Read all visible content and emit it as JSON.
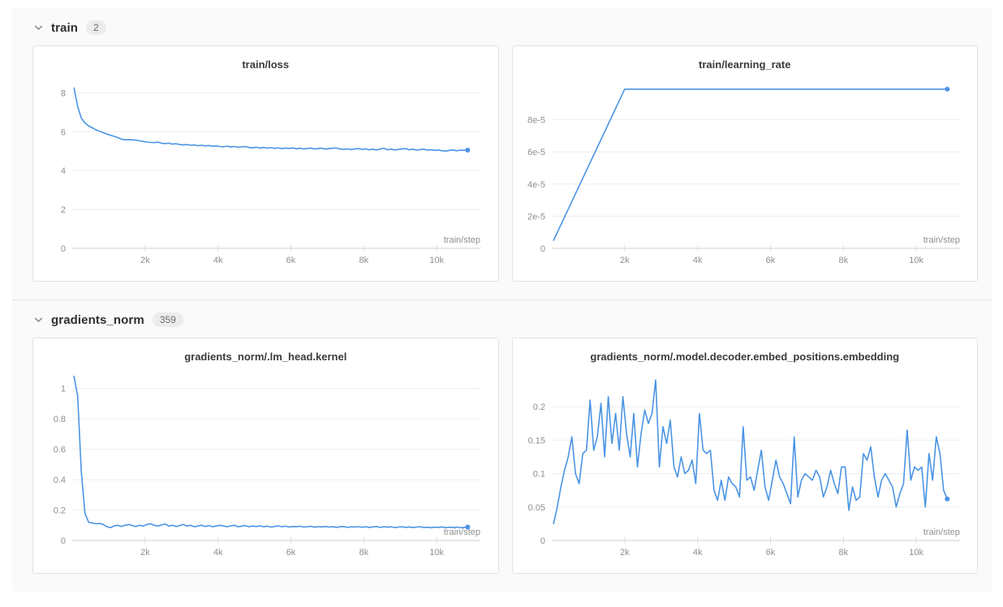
{
  "colors": {
    "accent_line": "#4a94e4",
    "content_background": "#fafafa",
    "panel_border": "#e2e2e2",
    "gridline": "#ededed",
    "axis_line": "#cfcfcf"
  },
  "sections": [
    {
      "title": "train",
      "count": "2",
      "chart_ids": [
        0,
        1
      ]
    },
    {
      "title": "gradients_norm",
      "count": "359",
      "chart_ids": [
        2,
        3
      ]
    }
  ],
  "chart_data": [
    {
      "type": "line",
      "title": "train/loss",
      "xlabel": "train/step",
      "color": "#4a94e4",
      "legend_position": "none",
      "grid": true,
      "xlim": [
        0,
        11200
      ],
      "ylim": [
        0,
        8.6
      ],
      "xtick_values": [
        2000,
        4000,
        6000,
        8000,
        10000
      ],
      "xtick_labels": [
        "2k",
        "4k",
        "6k",
        "8k",
        "10k"
      ],
      "ytick_values": [
        0,
        2,
        4,
        6,
        8
      ],
      "ytick_labels": [
        "0",
        "2",
        "4",
        "6",
        "8"
      ],
      "x0": 50,
      "dx": 100,
      "y": [
        8.25,
        7.3,
        6.7,
        6.45,
        6.3,
        6.2,
        6.1,
        6.02,
        5.95,
        5.88,
        5.82,
        5.76,
        5.7,
        5.62,
        5.58,
        5.59,
        5.58,
        5.56,
        5.53,
        5.5,
        5.47,
        5.45,
        5.44,
        5.46,
        5.41,
        5.39,
        5.41,
        5.36,
        5.38,
        5.34,
        5.32,
        5.34,
        5.3,
        5.32,
        5.28,
        5.3,
        5.27,
        5.29,
        5.25,
        5.27,
        5.24,
        5.22,
        5.26,
        5.21,
        5.24,
        5.2,
        5.22,
        5.24,
        5.19,
        5.17,
        5.2,
        5.16,
        5.19,
        5.15,
        5.18,
        5.14,
        5.17,
        5.13,
        5.16,
        5.14,
        5.17,
        5.12,
        5.15,
        5.11,
        5.14,
        5.16,
        5.11,
        5.14,
        5.15,
        5.1,
        5.13,
        5.15,
        5.16,
        5.11,
        5.09,
        5.12,
        5.08,
        5.11,
        5.13,
        5.09,
        5.12,
        5.07,
        5.1,
        5.06,
        5.11,
        5.15,
        5.07,
        5.1,
        5.06,
        5.09,
        5.11,
        5.13,
        5.07,
        5.1,
        5.05,
        5.08,
        5.1,
        5.05,
        5.07,
        5.04,
        5.06,
        5.02,
        5.0,
        5.04,
        5.06,
        5.02,
        5.05,
        5.04,
        5.05
      ]
    },
    {
      "type": "line",
      "title": "train/learning_rate",
      "xlabel": "train/step",
      "color": "#4a94e4",
      "legend_position": "none",
      "grid": true,
      "xlim": [
        0,
        11200
      ],
      "ylim": [
        0,
        0.000104
      ],
      "xtick_values": [
        2000,
        4000,
        6000,
        8000,
        10000
      ],
      "xtick_labels": [
        "2k",
        "4k",
        "6k",
        "8k",
        "10k"
      ],
      "ytick_values": [
        0,
        2e-05,
        4e-05,
        6e-05,
        8e-05
      ],
      "ytick_labels": [
        "0",
        "2e-5",
        "4e-5",
        "6e-5",
        "8e-5"
      ],
      "x": [
        50,
        2000,
        10850
      ],
      "y": [
        5e-06,
        9.9e-05,
        9.9e-05
      ]
    },
    {
      "type": "line",
      "title": "gradients_norm/.lm_head.kernel",
      "xlabel": "train/step",
      "color": "#4a94e4",
      "legend_position": "none",
      "grid": true,
      "xlim": [
        0,
        11200
      ],
      "ylim": [
        0,
        1.1
      ],
      "xtick_values": [
        2000,
        4000,
        6000,
        8000,
        10000
      ],
      "xtick_labels": [
        "2k",
        "4k",
        "6k",
        "8k",
        "10k"
      ],
      "ytick_values": [
        0,
        0.2,
        0.4,
        0.6,
        0.8,
        1
      ],
      "ytick_labels": [
        "0",
        "0.2",
        "0.4",
        "0.6",
        "0.8",
        "1"
      ],
      "x0": 50,
      "dx": 100,
      "y": [
        1.08,
        0.95,
        0.45,
        0.18,
        0.12,
        0.115,
        0.11,
        0.112,
        0.105,
        0.09,
        0.085,
        0.095,
        0.1,
        0.092,
        0.1,
        0.105,
        0.098,
        0.092,
        0.1,
        0.095,
        0.105,
        0.11,
        0.1,
        0.095,
        0.102,
        0.108,
        0.095,
        0.1,
        0.092,
        0.098,
        0.105,
        0.095,
        0.1,
        0.09,
        0.095,
        0.1,
        0.092,
        0.098,
        0.09,
        0.095,
        0.1,
        0.095,
        0.09,
        0.096,
        0.1,
        0.09,
        0.094,
        0.098,
        0.09,
        0.095,
        0.092,
        0.096,
        0.09,
        0.094,
        0.088,
        0.092,
        0.096,
        0.09,
        0.094,
        0.088,
        0.092,
        0.09,
        0.094,
        0.088,
        0.09,
        0.093,
        0.087,
        0.091,
        0.089,
        0.092,
        0.088,
        0.09,
        0.086,
        0.09,
        0.092,
        0.086,
        0.09,
        0.088,
        0.091,
        0.087,
        0.09,
        0.086,
        0.089,
        0.092,
        0.086,
        0.09,
        0.087,
        0.09,
        0.085,
        0.088,
        0.09,
        0.086,
        0.089,
        0.085,
        0.088,
        0.09,
        0.085,
        0.087,
        0.084,
        0.088,
        0.086,
        0.089,
        0.084,
        0.087,
        0.085,
        0.088,
        0.084,
        0.086,
        0.088
      ]
    },
    {
      "type": "line",
      "title": "gradients_norm/.model.decoder.embed_positions.embedding",
      "xlabel": "train/step",
      "color": "#4a94e4",
      "legend_position": "none",
      "grid": true,
      "xlim": [
        0,
        11200
      ],
      "ylim": [
        0,
        0.25
      ],
      "xtick_values": [
        2000,
        4000,
        6000,
        8000,
        10000
      ],
      "xtick_labels": [
        "2k",
        "4k",
        "6k",
        "8k",
        "10k"
      ],
      "ytick_values": [
        0,
        0.05,
        0.1,
        0.15,
        0.2
      ],
      "ytick_labels": [
        "0",
        "0.05",
        "0.1",
        "0.15",
        "0.2"
      ],
      "x0": 50,
      "dx": 100,
      "y": [
        0.025,
        0.05,
        0.08,
        0.105,
        0.125,
        0.155,
        0.1,
        0.085,
        0.13,
        0.135,
        0.21,
        0.135,
        0.155,
        0.205,
        0.125,
        0.215,
        0.145,
        0.19,
        0.135,
        0.215,
        0.16,
        0.125,
        0.19,
        0.11,
        0.16,
        0.195,
        0.175,
        0.19,
        0.24,
        0.11,
        0.17,
        0.145,
        0.18,
        0.11,
        0.095,
        0.125,
        0.1,
        0.105,
        0.12,
        0.085,
        0.19,
        0.135,
        0.13,
        0.135,
        0.075,
        0.06,
        0.09,
        0.06,
        0.095,
        0.085,
        0.08,
        0.065,
        0.17,
        0.09,
        0.095,
        0.075,
        0.105,
        0.135,
        0.08,
        0.06,
        0.09,
        0.12,
        0.095,
        0.085,
        0.07,
        0.055,
        0.155,
        0.065,
        0.09,
        0.1,
        0.095,
        0.09,
        0.105,
        0.095,
        0.065,
        0.08,
        0.105,
        0.085,
        0.07,
        0.11,
        0.11,
        0.045,
        0.08,
        0.06,
        0.065,
        0.13,
        0.12,
        0.14,
        0.095,
        0.065,
        0.09,
        0.1,
        0.09,
        0.08,
        0.05,
        0.07,
        0.085,
        0.165,
        0.09,
        0.11,
        0.105,
        0.11,
        0.05,
        0.13,
        0.09,
        0.155,
        0.13,
        0.075,
        0.062
      ]
    }
  ]
}
